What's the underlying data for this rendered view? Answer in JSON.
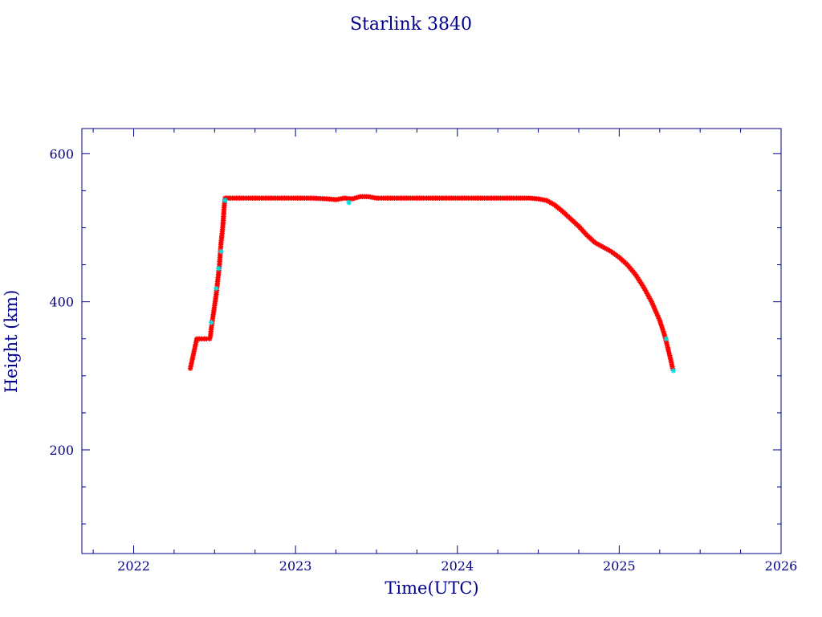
{
  "chart_data": {
    "type": "scatter",
    "title": "Starlink 3840",
    "xlabel": "Time(UTC)",
    "ylabel": "Height (km)",
    "xlim": [
      2021.68,
      2026.0
    ],
    "ylim": [
      60,
      634
    ],
    "x_major_ticks": [
      2022,
      2023,
      2024,
      2025,
      2026
    ],
    "x_tick_labels": [
      "2022",
      "2023",
      "2024",
      "2025",
      "2026"
    ],
    "y_major_ticks": [
      200,
      400,
      600
    ],
    "y_tick_labels": [
      "200",
      "400",
      "600"
    ],
    "grid": false,
    "series": [
      {
        "color": "#ff0000",
        "marker": "asterisk",
        "points": [
          [
            2022.35,
            310
          ],
          [
            2022.36,
            320
          ],
          [
            2022.375,
            335
          ],
          [
            2022.385,
            345
          ],
          [
            2022.39,
            350
          ],
          [
            2022.42,
            350
          ],
          [
            2022.45,
            350
          ],
          [
            2022.47,
            350
          ],
          [
            2022.475,
            355
          ],
          [
            2022.48,
            365
          ],
          [
            2022.49,
            380
          ],
          [
            2022.5,
            395
          ],
          [
            2022.51,
            410
          ],
          [
            2022.52,
            430
          ],
          [
            2022.53,
            450
          ],
          [
            2022.535,
            465
          ],
          [
            2022.54,
            480
          ],
          [
            2022.55,
            500
          ],
          [
            2022.555,
            515
          ],
          [
            2022.56,
            530
          ],
          [
            2022.565,
            540
          ],
          [
            2022.6,
            540
          ],
          [
            2022.7,
            540
          ],
          [
            2022.8,
            540
          ],
          [
            2022.9,
            540
          ],
          [
            2023.0,
            540
          ],
          [
            2023.1,
            540
          ],
          [
            2023.2,
            539
          ],
          [
            2023.25,
            538
          ],
          [
            2023.3,
            540
          ],
          [
            2023.35,
            539
          ],
          [
            2023.4,
            542
          ],
          [
            2023.45,
            542
          ],
          [
            2023.5,
            540
          ],
          [
            2023.6,
            540
          ],
          [
            2023.7,
            540
          ],
          [
            2023.8,
            540
          ],
          [
            2023.9,
            540
          ],
          [
            2024.0,
            540
          ],
          [
            2024.1,
            540
          ],
          [
            2024.2,
            540
          ],
          [
            2024.3,
            540
          ],
          [
            2024.4,
            540
          ],
          [
            2024.45,
            540
          ],
          [
            2024.5,
            539
          ],
          [
            2024.55,
            537
          ],
          [
            2024.6,
            531
          ],
          [
            2024.65,
            522
          ],
          [
            2024.7,
            512
          ],
          [
            2024.75,
            502
          ],
          [
            2024.8,
            490
          ],
          [
            2024.85,
            480
          ],
          [
            2024.9,
            474
          ],
          [
            2024.95,
            468
          ],
          [
            2025.0,
            460
          ],
          [
            2025.05,
            450
          ],
          [
            2025.1,
            437
          ],
          [
            2025.15,
            420
          ],
          [
            2025.2,
            400
          ],
          [
            2025.25,
            375
          ],
          [
            2025.28,
            355
          ],
          [
            2025.3,
            338
          ],
          [
            2025.32,
            320
          ],
          [
            2025.33,
            310
          ]
        ]
      },
      {
        "color": "#00dddd",
        "marker": "asterisk",
        "points": [
          [
            2022.48,
            372
          ],
          [
            2022.51,
            418
          ],
          [
            2022.525,
            445
          ],
          [
            2022.54,
            468
          ],
          [
            2022.565,
            537
          ],
          [
            2023.33,
            534
          ],
          [
            2025.29,
            350
          ],
          [
            2025.335,
            307
          ]
        ]
      }
    ]
  }
}
